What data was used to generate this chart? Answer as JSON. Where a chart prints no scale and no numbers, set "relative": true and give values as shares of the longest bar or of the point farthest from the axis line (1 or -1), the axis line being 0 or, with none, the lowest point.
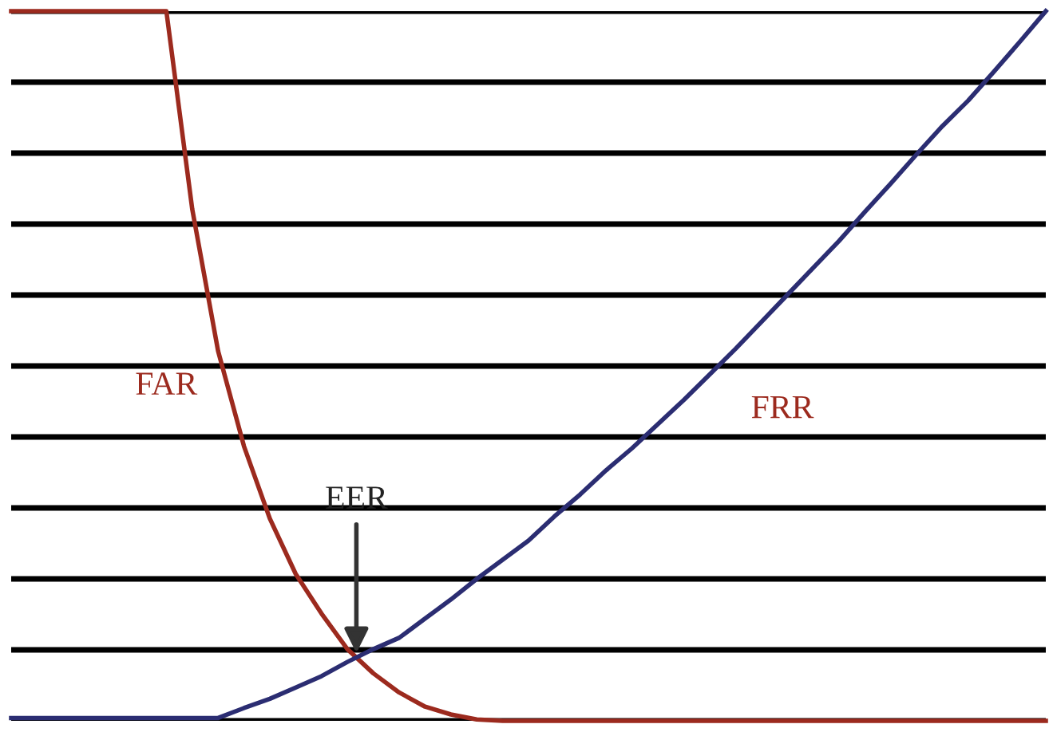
{
  "chart_data": {
    "type": "line",
    "relative": true,
    "grid": "y",
    "legend": false,
    "marker": "none",
    "line_style": "solid",
    "categories": [
      null,
      null,
      null,
      null,
      null,
      null,
      null,
      null,
      null,
      null,
      null,
      null,
      null,
      null,
      null,
      null,
      null,
      null,
      null,
      null,
      null,
      null,
      null,
      null,
      null,
      null,
      null,
      null,
      null,
      null,
      null,
      null,
      null,
      null,
      null,
      null,
      null,
      null,
      null,
      null,
      null
    ],
    "series": [
      {
        "name": "FAR",
        "color": "#9c2a1e",
        "values": [
          1.0,
          1.0,
          1.0,
          1.0,
          1.0,
          1.0,
          1.0,
          0.721,
          0.521,
          0.387,
          0.285,
          0.207,
          0.151,
          0.101,
          0.067,
          0.04,
          0.02,
          0.009,
          0.002,
          0,
          0,
          0,
          0,
          0,
          0,
          0,
          0,
          0,
          0,
          0,
          0,
          0,
          0,
          0,
          0,
          0,
          0,
          0,
          0,
          0,
          0
        ]
      },
      {
        "name": "FRR",
        "color": "#2b2d72",
        "values": [
          0.004,
          0.004,
          0.004,
          0.004,
          0.004,
          0.004,
          0.004,
          0.004,
          0.004,
          0.018,
          0.031,
          0.047,
          0.063,
          0.083,
          0.101,
          0.117,
          0.144,
          0.171,
          0.2,
          0.227,
          0.254,
          0.288,
          0.319,
          0.353,
          0.384,
          0.418,
          0.452,
          0.488,
          0.524,
          0.562,
          0.6,
          0.638,
          0.676,
          0.717,
          0.757,
          0.798,
          0.838,
          0.874,
          0.915,
          0.957,
          1.0
        ]
      }
    ],
    "annotations": [
      "EER"
    ]
  }
}
